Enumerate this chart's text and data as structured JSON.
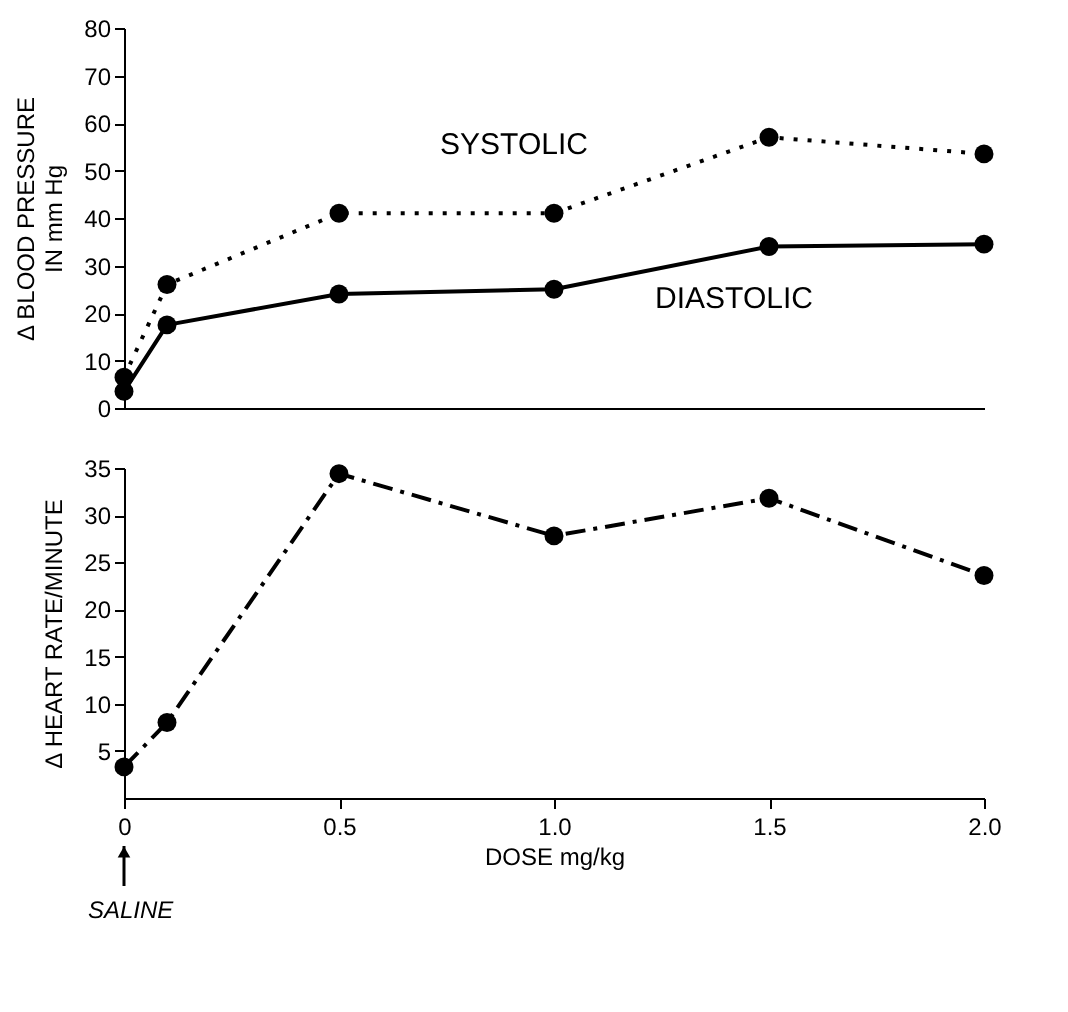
{
  "chart_data": [
    {
      "type": "line",
      "ylabel": "Δ BLOOD PRESSURE\nIN mm Hg",
      "x": [
        0,
        0.1,
        0.5,
        1.0,
        1.5,
        2.0
      ],
      "xlim": [
        0,
        2.0
      ],
      "ylim": [
        0,
        80
      ],
      "yticks": [
        0,
        10,
        20,
        30,
        40,
        50,
        60,
        70,
        80
      ],
      "tick_labels": "y",
      "grid": false,
      "legend": false,
      "marker": "circle",
      "series": [
        {
          "name": "SYSTOLIC",
          "color": "#000000",
          "line_style": "dotted",
          "values": [
            6.5,
            26,
            41,
            41,
            57,
            53.5
          ]
        },
        {
          "name": "DIASTOLIC",
          "color": "#000000",
          "line_style": "solid",
          "values": [
            3.5,
            17.5,
            24,
            25,
            34,
            34.5
          ]
        }
      ]
    },
    {
      "type": "line",
      "ylabel": "Δ HEART RATE/MINUTE",
      "xlabel": "DOSE mg/kg",
      "x": [
        0,
        0.1,
        0.5,
        1.0,
        1.5,
        2.0
      ],
      "xlim": [
        0,
        2.0
      ],
      "xticks": [
        0,
        0.5,
        {
          "value": 1.0,
          "label": "1.0"
        },
        1.5,
        {
          "value": 2.0,
          "label": "2.0"
        }
      ],
      "ylim": [
        0,
        35
      ],
      "yticks": [
        5,
        10,
        15,
        20,
        25,
        30,
        35
      ],
      "grid": false,
      "legend": false,
      "marker": "circle",
      "annotations": [
        {
          "text": "SALINE",
          "x": 0
        }
      ],
      "series": [
        {
          "color": "#000000",
          "line_style": "dashed",
          "values": [
            3.3,
            8,
            34.4,
            27.8,
            31.8,
            23.6
          ]
        }
      ]
    }
  ]
}
